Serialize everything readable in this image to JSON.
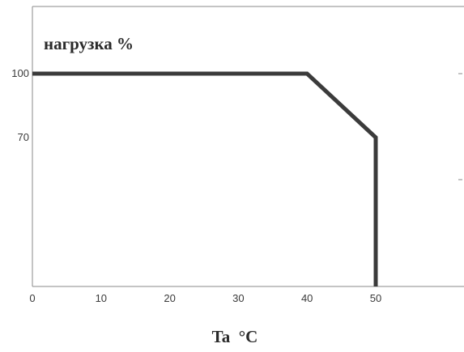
{
  "chart_data": {
    "type": "line",
    "ylabel": "нагрузка %",
    "xlabel": "Ta  °C",
    "x_ticks": [
      "0",
      "10",
      "20",
      "30",
      "40",
      "50"
    ],
    "y_ticks": [
      "100",
      "70"
    ],
    "xlim": [
      0,
      60
    ],
    "ylim": [
      0,
      130
    ],
    "grid": false,
    "series": [
      {
        "x": [
          0,
          40,
          50,
          50
        ],
        "y": [
          100,
          100,
          70,
          0
        ],
        "color": "#3b3b3b"
      }
    ]
  }
}
